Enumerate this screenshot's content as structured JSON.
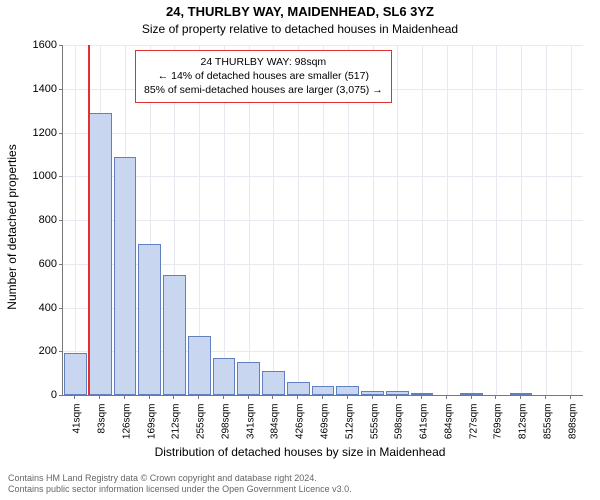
{
  "title_main": "24, THURLBY WAY, MAIDENHEAD, SL6 3YZ",
  "title_sub": "Size of property relative to detached houses in Maidenhead",
  "y_axis_label": "Number of detached properties",
  "x_axis_label": "Distribution of detached houses by size in Maidenhead",
  "chart": {
    "type": "bar",
    "bar_fill": "#c8d6ef",
    "bar_stroke": "#6080c0",
    "grid_color": "#e8e8f0",
    "background_color": "#ffffff",
    "marker_color": "#e03030",
    "ylim": [
      0,
      1600
    ],
    "ytick_step": 200,
    "x_categories": [
      "41sqm",
      "83sqm",
      "126sqm",
      "169sqm",
      "212sqm",
      "255sqm",
      "298sqm",
      "341sqm",
      "384sqm",
      "426sqm",
      "469sqm",
      "512sqm",
      "555sqm",
      "598sqm",
      "641sqm",
      "684sqm",
      "727sqm",
      "769sqm",
      "812sqm",
      "855sqm",
      "898sqm"
    ],
    "values": [
      190,
      1290,
      1090,
      690,
      550,
      270,
      170,
      150,
      110,
      60,
      40,
      40,
      20,
      20,
      10,
      0,
      10,
      0,
      10,
      0,
      0
    ],
    "marker_at_boundary_index": 1
  },
  "info_box": {
    "line1": "24 THURLBY WAY: 98sqm",
    "line2": "← 14% of detached houses are smaller (517)",
    "line3": "85% of semi-detached houses are larger (3,075) →"
  },
  "footer": {
    "line1": "Contains HM Land Registry data © Crown copyright and database right 2024.",
    "line2": "Contains public sector information licensed under the Open Government Licence v3.0."
  }
}
